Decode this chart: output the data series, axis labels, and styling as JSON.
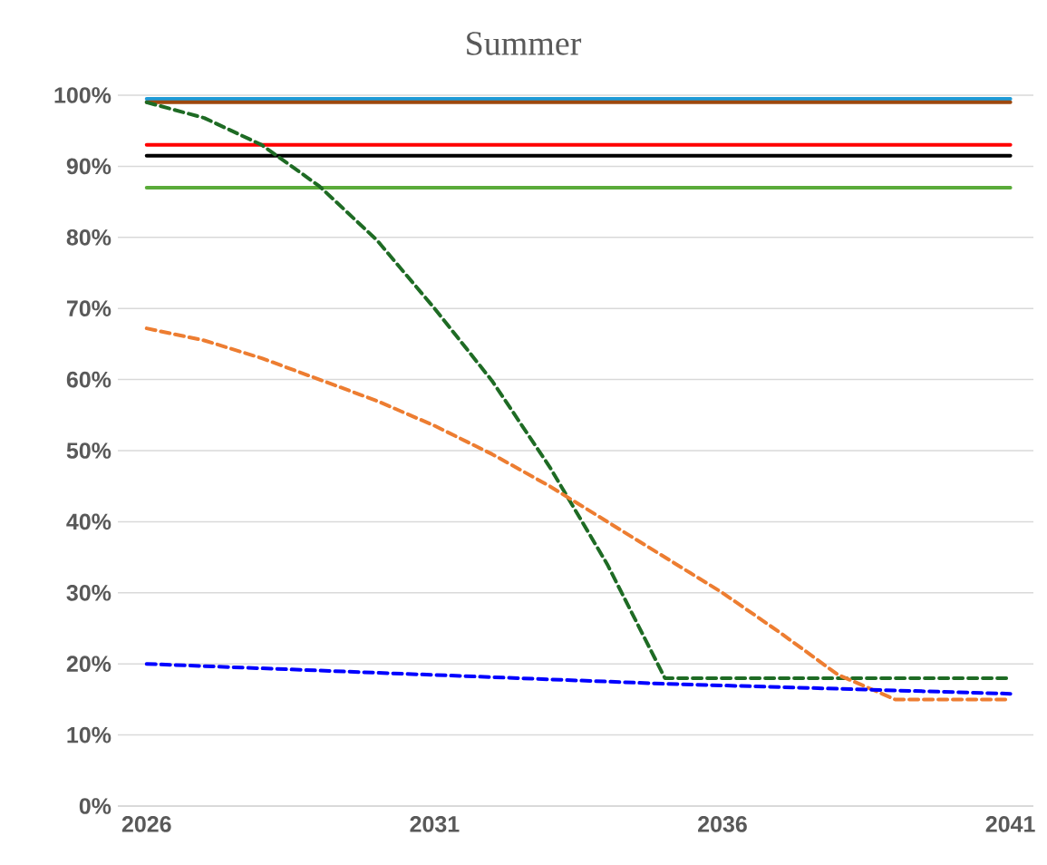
{
  "chart_data": {
    "type": "line",
    "title": "Summer",
    "x": [
      2026,
      2041
    ],
    "series": [
      {
        "color": "#1f9bd7",
        "line_style": "solid",
        "values": [
          99.5,
          99.5
        ]
      },
      {
        "color": "#9e480e",
        "line_style": "solid",
        "values": [
          99,
          99
        ]
      },
      {
        "color": "#ff0000",
        "line_style": "solid",
        "values": [
          93,
          93
        ]
      },
      {
        "color": "#000000",
        "line_style": "solid",
        "values": [
          91.5,
          91.5
        ]
      },
      {
        "color": "#5aab3a",
        "line_style": "solid",
        "values": [
          87,
          87
        ]
      },
      {
        "color": "#1e6b24",
        "line_style": "dashed",
        "x": [
          2026,
          2027,
          2028,
          2029,
          2030,
          2031,
          2032,
          2033,
          2034,
          2035,
          2036,
          2037,
          2038,
          2039,
          2040,
          2041
        ],
        "values": [
          99,
          96.8,
          93,
          87.2,
          79.6,
          70,
          59.8,
          47.7,
          34,
          18,
          18,
          18,
          18,
          18,
          18,
          18
        ]
      },
      {
        "color": "#ed7d31",
        "line_style": "dashed",
        "x": [
          2026,
          2027,
          2028,
          2029,
          2030,
          2031,
          2032,
          2033,
          2034,
          2035,
          2036,
          2037,
          2038,
          2039,
          2040,
          2041
        ],
        "values": [
          67.2,
          65.5,
          63,
          60,
          57,
          53.5,
          49.5,
          45,
          40,
          35,
          30,
          24.4,
          18.5,
          15,
          15,
          15
        ]
      },
      {
        "color": "#0000ff",
        "line_style": "dashed",
        "x": [
          2026,
          2035,
          2041
        ],
        "values": [
          20,
          17.2,
          15.8
        ]
      }
    ],
    "xlim": [
      2025.5,
      2041.4
    ],
    "xticks": [
      2026,
      2031,
      2036,
      2041
    ],
    "ylim": [
      0,
      100
    ],
    "yticks": [
      {
        "value": 0,
        "label": "0%"
      },
      {
        "value": 10,
        "label": "10%"
      },
      {
        "value": 20,
        "label": "20%"
      },
      {
        "value": 30,
        "label": "30%"
      },
      {
        "value": 40,
        "label": "40%"
      },
      {
        "value": 50,
        "label": "50%"
      },
      {
        "value": 60,
        "label": "60%"
      },
      {
        "value": 70,
        "label": "70%"
      },
      {
        "value": 80,
        "label": "80%"
      },
      {
        "value": 90,
        "label": "90%"
      },
      {
        "value": 100,
        "label": "100%"
      }
    ],
    "grid": "y",
    "legend": false
  }
}
